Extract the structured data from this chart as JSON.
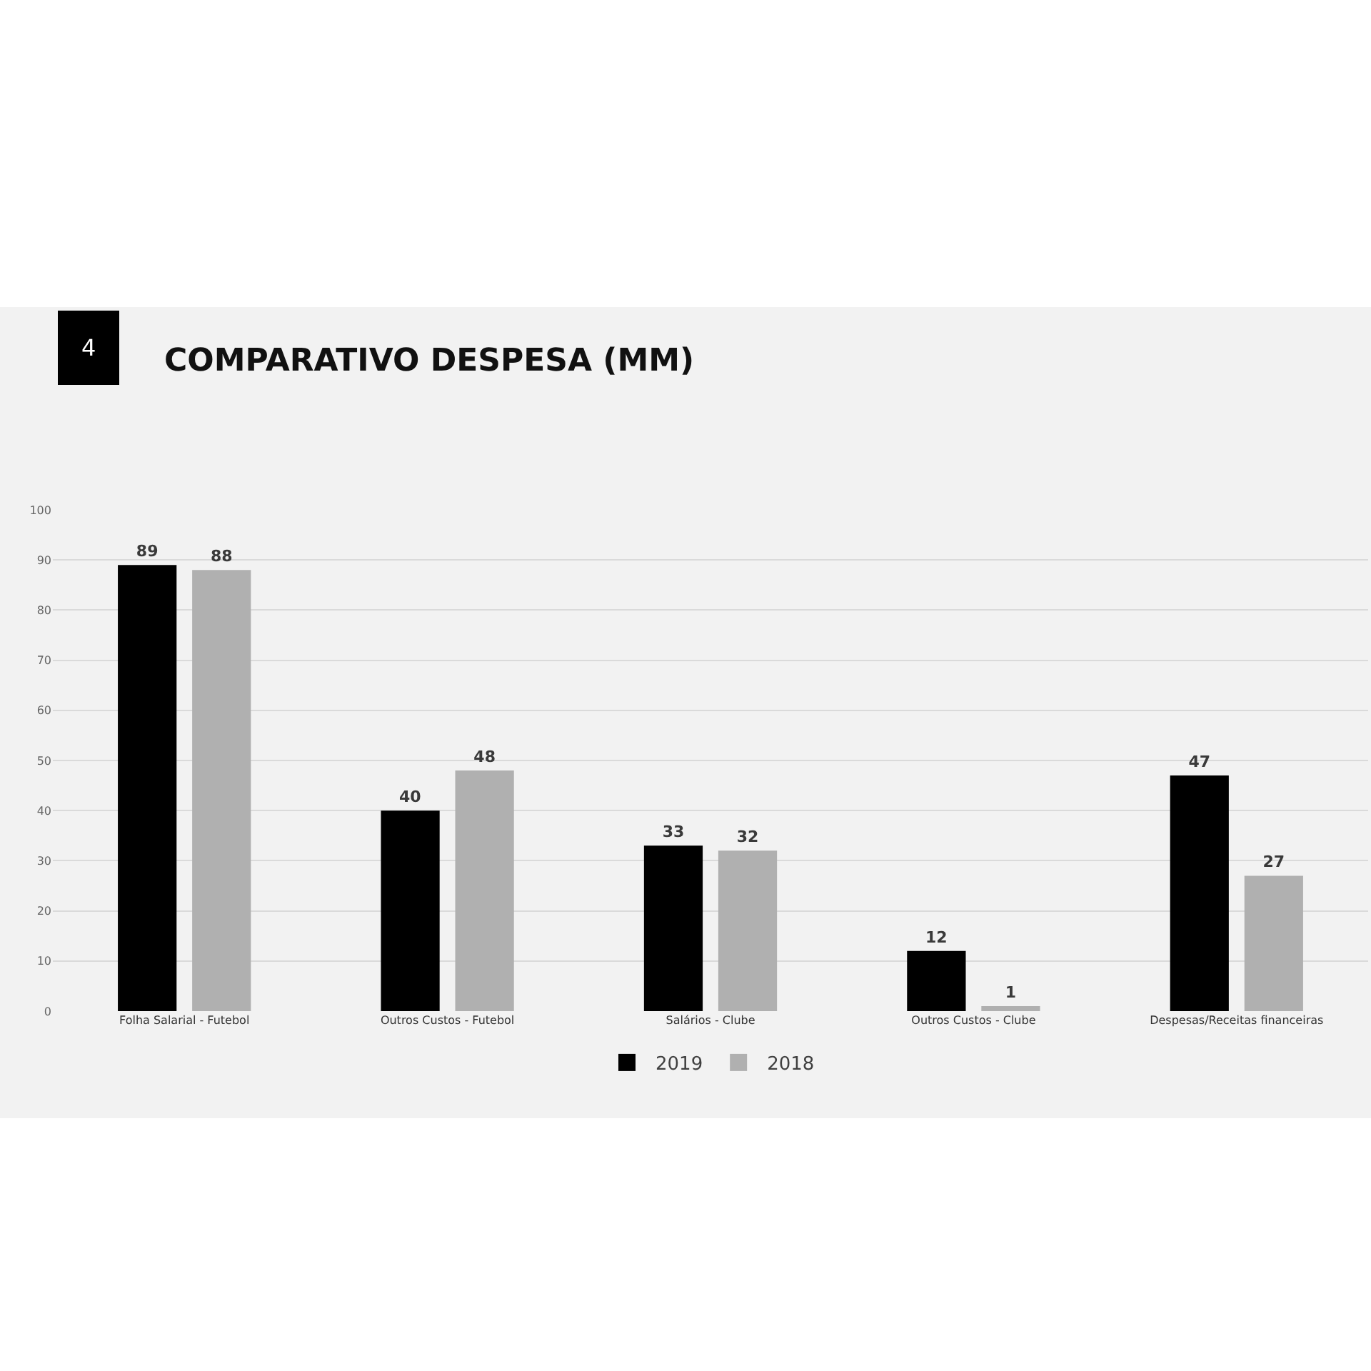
{
  "chart_data": {
    "type": "bar",
    "title": "COMPARATIVO DESPESA (MM)",
    "annotations": [
      "4"
    ],
    "categories": [
      "Folha Salarial - Futebol",
      "Outros Custos - Futebol",
      "Salários - Clube",
      "Outros Custos - Clube",
      "Despesas/Receitas financeiras"
    ],
    "series": [
      {
        "name": "2019",
        "color": "#000000",
        "values": [
          89,
          40,
          33,
          12,
          47
        ]
      },
      {
        "name": "2018",
        "color": "#b0b0b0",
        "values": [
          88,
          48,
          32,
          1,
          27
        ]
      }
    ],
    "ylim": [
      0,
      100
    ],
    "yticks": [
      0,
      10,
      20,
      30,
      40,
      50,
      60,
      70,
      80,
      90,
      100
    ],
    "grid": "y",
    "legend": "bottom",
    "data_labels": true
  }
}
